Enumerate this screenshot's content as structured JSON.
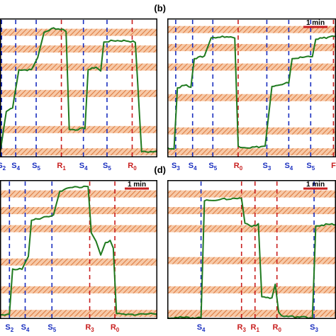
{
  "colors": {
    "trace": "#1f7a1f",
    "s_marker": "#1a2fbf",
    "r_marker": "#c81e1e",
    "band_fill": "#f6c9a8",
    "band_hatch": "#e07a3c",
    "scale_bar": "#c81e1e",
    "frame": "#000000"
  },
  "chart_data": [
    {
      "type": "line",
      "panel": "a",
      "panel_label": "",
      "scale_text": "",
      "bands": [
        0.9,
        0.78,
        0.65,
        0.46,
        0.2,
        0.04
      ],
      "trace": [
        [
          0,
          0.03
        ],
        [
          0.04,
          0.33
        ],
        [
          0.08,
          0.36
        ],
        [
          0.12,
          0.63
        ],
        [
          0.2,
          0.63
        ],
        [
          0.24,
          0.72
        ],
        [
          0.28,
          0.9
        ],
        [
          0.34,
          0.93
        ],
        [
          0.4,
          0.92
        ],
        [
          0.42,
          0.91
        ],
        [
          0.44,
          0.2
        ],
        [
          0.48,
          0.2
        ],
        [
          0.54,
          0.21
        ],
        [
          0.56,
          0.63
        ],
        [
          0.61,
          0.65
        ],
        [
          0.64,
          0.62
        ],
        [
          0.66,
          0.83
        ],
        [
          0.72,
          0.84
        ],
        [
          0.8,
          0.84
        ],
        [
          0.86,
          0.83
        ],
        [
          0.9,
          0.04
        ],
        [
          1,
          0.04
        ]
      ],
      "markers": [
        {
          "x": 0.01,
          "label": "S",
          "sub": "2",
          "kind": "S"
        },
        {
          "x": 0.1,
          "label": "S",
          "sub": "4",
          "kind": "S"
        },
        {
          "x": 0.23,
          "label": "S",
          "sub": "5",
          "kind": "S"
        },
        {
          "x": 0.39,
          "label": "R",
          "sub": "1",
          "kind": "R"
        },
        {
          "x": 0.53,
          "label": "S",
          "sub": "4",
          "kind": "S"
        },
        {
          "x": 0.68,
          "label": "S",
          "sub": "5",
          "kind": "S"
        },
        {
          "x": 0.84,
          "label": "R",
          "sub": "0",
          "kind": "R"
        }
      ]
    },
    {
      "type": "line",
      "panel": "b",
      "panel_label": "(b)",
      "scale_text": "1 min",
      "bands": [
        0.92,
        0.79,
        0.65,
        0.43,
        0.19,
        0.04
      ],
      "trace": [
        [
          0,
          0.07
        ],
        [
          0.04,
          0.06
        ],
        [
          0.06,
          0.5
        ],
        [
          0.1,
          0.52
        ],
        [
          0.14,
          0.51
        ],
        [
          0.16,
          0.71
        ],
        [
          0.22,
          0.73
        ],
        [
          0.26,
          0.86
        ],
        [
          0.34,
          0.87
        ],
        [
          0.4,
          0.86
        ],
        [
          0.42,
          0.08
        ],
        [
          0.48,
          0.07
        ],
        [
          0.58,
          0.08
        ],
        [
          0.62,
          0.51
        ],
        [
          0.68,
          0.52
        ],
        [
          0.72,
          0.54
        ],
        [
          0.74,
          0.71
        ],
        [
          0.8,
          0.72
        ],
        [
          0.86,
          0.73
        ],
        [
          0.88,
          0.85
        ],
        [
          0.93,
          0.86
        ],
        [
          0.99,
          0.87
        ],
        [
          1,
          0.87
        ]
      ],
      "markers": [
        {
          "x": 0.05,
          "label": "S",
          "sub": "3",
          "kind": "S"
        },
        {
          "x": 0.15,
          "label": "S",
          "sub": "4",
          "kind": "S"
        },
        {
          "x": 0.27,
          "label": "S",
          "sub": "5",
          "kind": "S"
        },
        {
          "x": 0.42,
          "label": "R",
          "sub": "0",
          "kind": "R"
        },
        {
          "x": 0.59,
          "label": "S",
          "sub": "3",
          "kind": "S"
        },
        {
          "x": 0.72,
          "label": "S",
          "sub": "4",
          "kind": "S"
        },
        {
          "x": 0.85,
          "label": "S",
          "sub": "5",
          "kind": "S"
        },
        {
          "x": 0.985,
          "label": "F",
          "sub": "",
          "kind": "R"
        }
      ]
    },
    {
      "type": "line",
      "panel": "c",
      "panel_label": "",
      "scale_text": "1 min",
      "bands": [
        0.9,
        0.78,
        0.65,
        0.41,
        0.21,
        0.04
      ],
      "trace": [
        [
          0,
          0.03
        ],
        [
          0.06,
          0.03
        ],
        [
          0.08,
          0.36
        ],
        [
          0.14,
          0.36
        ],
        [
          0.18,
          0.45
        ],
        [
          0.2,
          0.71
        ],
        [
          0.28,
          0.73
        ],
        [
          0.34,
          0.75
        ],
        [
          0.38,
          0.92
        ],
        [
          0.46,
          0.95
        ],
        [
          0.52,
          0.95
        ],
        [
          0.56,
          0.95
        ],
        [
          0.58,
          0.62
        ],
        [
          0.61,
          0.56
        ],
        [
          0.64,
          0.46
        ],
        [
          0.67,
          0.55
        ],
        [
          0.7,
          0.56
        ],
        [
          0.72,
          0.51
        ],
        [
          0.74,
          0.04
        ],
        [
          0.8,
          0.03
        ],
        [
          1,
          0.04
        ]
      ],
      "markers": [
        {
          "x": 0.06,
          "label": "S",
          "sub": "2",
          "kind": "S"
        },
        {
          "x": 0.16,
          "label": "S",
          "sub": "4",
          "kind": "S"
        },
        {
          "x": 0.33,
          "label": "S",
          "sub": "5",
          "kind": "S"
        },
        {
          "x": 0.57,
          "label": "R",
          "sub": "3",
          "kind": "R"
        },
        {
          "x": 0.73,
          "label": "R",
          "sub": "0",
          "kind": "R"
        }
      ]
    },
    {
      "type": "line",
      "panel": "d",
      "panel_label": "(d)",
      "scale_text": "1 min",
      "bands": [
        0.9,
        0.78,
        0.65,
        0.42,
        0.21,
        0.04
      ],
      "trace": [
        [
          0,
          0.01
        ],
        [
          0.2,
          0.01
        ],
        [
          0.22,
          0.85
        ],
        [
          0.3,
          0.86
        ],
        [
          0.44,
          0.87
        ],
        [
          0.46,
          0.69
        ],
        [
          0.5,
          0.67
        ],
        [
          0.54,
          0.68
        ],
        [
          0.56,
          0.16
        ],
        [
          0.62,
          0.15
        ],
        [
          0.64,
          0.25
        ],
        [
          0.66,
          0.05
        ],
        [
          0.68,
          0.02
        ],
        [
          0.86,
          0.01
        ],
        [
          0.88,
          0.67
        ],
        [
          0.94,
          0.68
        ],
        [
          1,
          0.68
        ]
      ],
      "markers": [
        {
          "x": 0.2,
          "label": "S",
          "sub": "4",
          "kind": "S"
        },
        {
          "x": 0.44,
          "label": "R",
          "sub": "3",
          "kind": "R"
        },
        {
          "x": 0.52,
          "label": "R",
          "sub": "1",
          "kind": "R"
        },
        {
          "x": 0.65,
          "label": "R",
          "sub": "0",
          "kind": "R"
        },
        {
          "x": 0.87,
          "label": "S",
          "sub": "3",
          "kind": "S"
        }
      ]
    }
  ]
}
